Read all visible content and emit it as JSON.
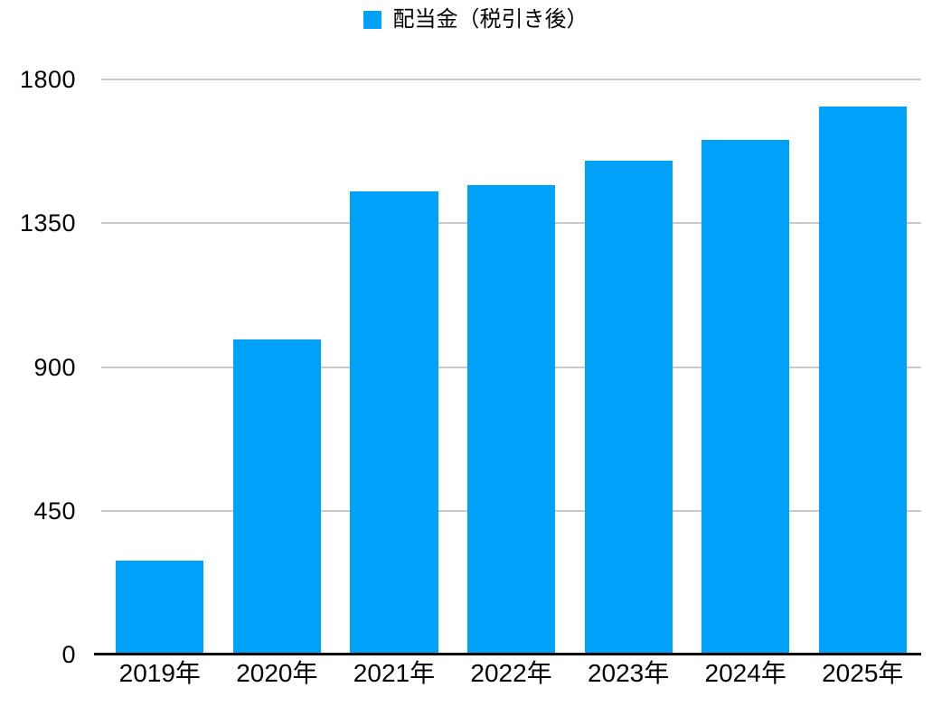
{
  "legend": {
    "label": "配当金（税引き後）"
  },
  "chart_data": {
    "type": "bar",
    "title": "",
    "xlabel": "",
    "ylabel": "",
    "categories": [
      "2019年",
      "2020年",
      "2021年",
      "2022年",
      "2023年",
      "2024年",
      "2025年"
    ],
    "series": [
      {
        "name": "配当金（税引き後）",
        "values": [
          295,
          985,
          1450,
          1470,
          1545,
          1610,
          1715
        ]
      }
    ],
    "ylim": [
      0,
      1800
    ],
    "yticks": [
      0,
      450,
      900,
      1350,
      1800
    ],
    "grid": true,
    "legend_position": "top-center",
    "colors": {
      "bar": "#00A1F8",
      "gridline": "#C9C9C9",
      "axis": "#000000",
      "text": "#000000",
      "background": "#FFFFFF"
    }
  }
}
